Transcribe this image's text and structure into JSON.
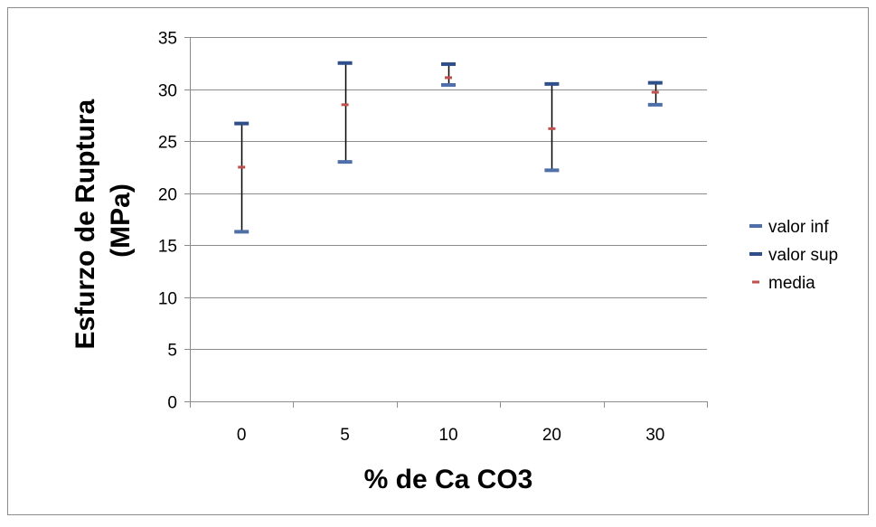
{
  "chart_data": {
    "type": "stock",
    "title": "",
    "xlabel": "% de Ca CO3",
    "ylabel": "Esfurzo de Ruptura (MPa)",
    "ylabel_lines": [
      "Esfurzo de Ruptura",
      "(MPa)"
    ],
    "ylim": [
      0,
      35
    ],
    "yticks": [
      0,
      5,
      10,
      15,
      20,
      25,
      30,
      35
    ],
    "categories": [
      "0",
      "5",
      "10",
      "20",
      "30"
    ],
    "grid": "horizontal",
    "legend_position": "right",
    "series": [
      {
        "name": "valor inf",
        "color": "#4F6FA8",
        "values": [
          16.3,
          23.0,
          30.4,
          22.2,
          28.5
        ]
      },
      {
        "name": "valor sup",
        "color": "#2E4F8A",
        "values": [
          26.7,
          32.5,
          32.4,
          30.5,
          30.6
        ]
      },
      {
        "name": "media",
        "color": "#C0504D",
        "values": [
          22.5,
          28.5,
          31.1,
          26.2,
          29.7
        ]
      }
    ]
  }
}
